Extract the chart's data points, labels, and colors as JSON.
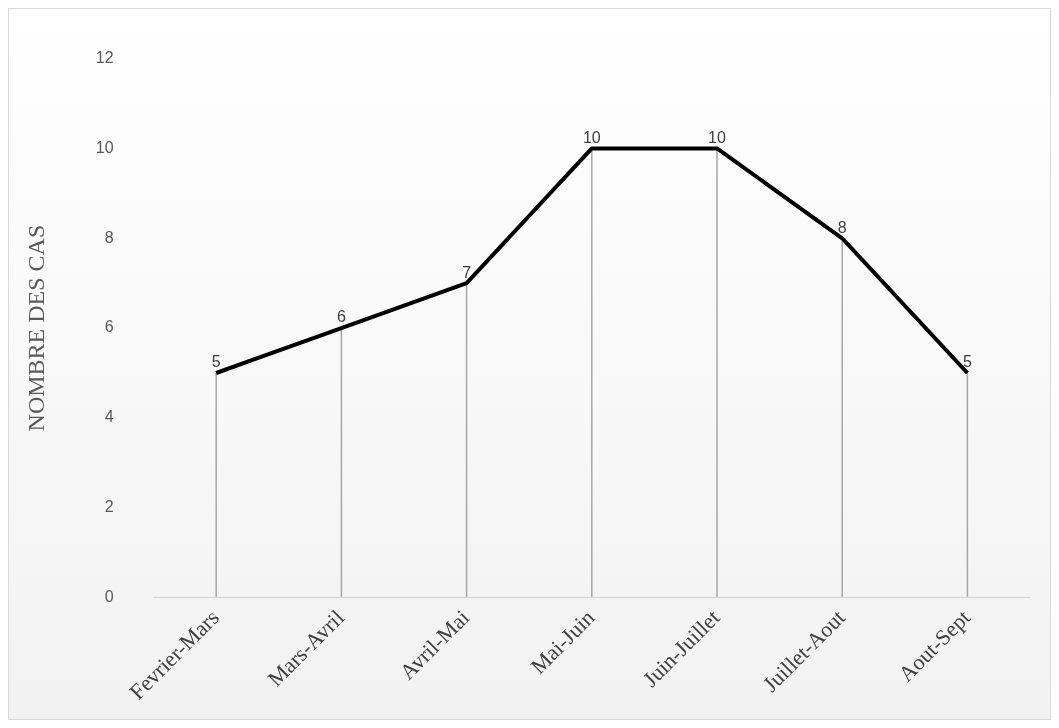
{
  "chart_data": {
    "type": "line",
    "ylabel": "NOMBRE DES CAS",
    "categories": [
      "Fevrier-Mars",
      "Mars-Avril",
      "Avril-Mai",
      "Mai-Juin",
      "Juin-Juillet",
      "Juillet-Aout",
      "Aout-Sept"
    ],
    "series": [
      {
        "color": "#000000",
        "values": [
          5,
          6,
          7,
          10,
          10,
          8,
          5
        ],
        "errors": [
          [
            0,
            5
          ],
          [
            0,
            6
          ],
          [
            0,
            7
          ],
          [
            0,
            10
          ],
          [
            0,
            10
          ],
          [
            0,
            8
          ],
          [
            0,
            5
          ]
        ]
      }
    ],
    "ylim": [
      0,
      12
    ],
    "yticks": [
      0,
      2,
      4,
      6,
      8,
      10,
      12
    ],
    "grid": false,
    "legend": false,
    "marker": "none",
    "line_style": "solid",
    "data_labels": true
  }
}
